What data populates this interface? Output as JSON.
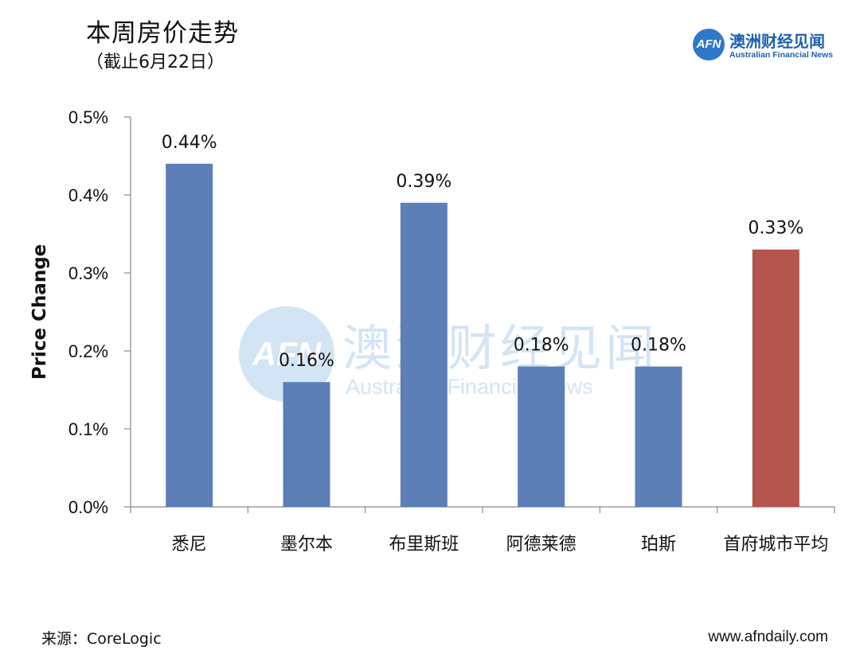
{
  "header": {
    "title": "本周房价走势",
    "subtitle": "（截止6月22日）"
  },
  "logo": {
    "mark": "AFN",
    "name_cn": "澳洲财经见闻",
    "name_en": "Australian Financial News"
  },
  "footer": {
    "source": "来源：CoreLogic",
    "website": "www.afndaily.com"
  },
  "chart_data": {
    "type": "bar",
    "title": "",
    "xlabel": "",
    "ylabel": "Price Change",
    "categories": [
      "悉尼",
      "墨尔本",
      "布里斯班",
      "阿德莱德",
      "珀斯",
      "首府城市平均"
    ],
    "values": [
      0.44,
      0.16,
      0.39,
      0.18,
      0.18,
      0.33
    ],
    "value_labels": [
      "0.44%",
      "0.16%",
      "0.39%",
      "0.18%",
      "0.18%",
      "0.33%"
    ],
    "bar_colors": [
      "#5b7fb6",
      "#5b7fb6",
      "#5b7fb6",
      "#5b7fb6",
      "#5b7fb6",
      "#b4554f"
    ],
    "ylim": [
      0,
      0.5
    ],
    "yticks": [
      0,
      0.1,
      0.2,
      0.3,
      0.4,
      0.5
    ],
    "ytick_labels": [
      "0.0%",
      "0.1%",
      "0.2%",
      "0.3%",
      "0.4%",
      "0.5%"
    ],
    "unit": "%",
    "grid": false,
    "legend": "none"
  }
}
